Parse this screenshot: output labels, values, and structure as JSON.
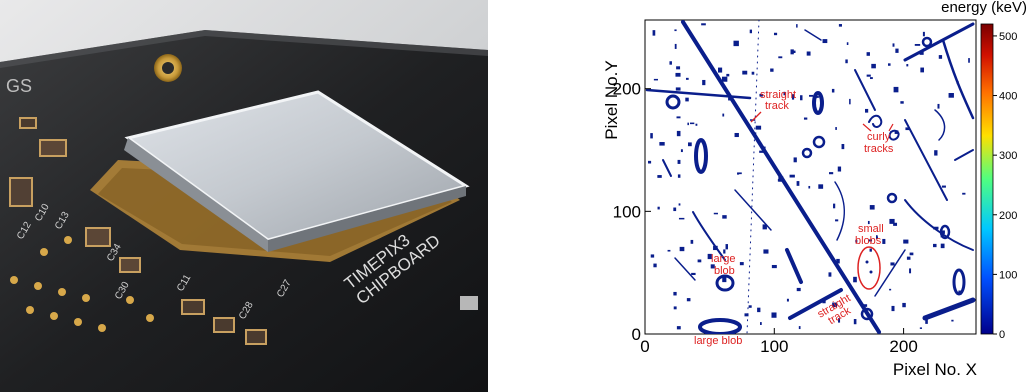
{
  "photo": {
    "chip_label_line1": "TIMEPIX3",
    "chip_label_line2": "CHIPBOARD",
    "silkscreen": [
      "C10",
      "C12",
      "C13",
      "C11",
      "C34",
      "C30",
      "C28",
      "C27",
      "GS"
    ]
  },
  "detector_map": {
    "axes": {
      "x_label": "Pixel No. X",
      "y_label": "Pixel No.Y",
      "x_ticks": [
        "0",
        "100",
        "200"
      ],
      "y_ticks": [
        "0",
        "100",
        "200"
      ],
      "xlim": [
        0,
        256
      ],
      "ylim": [
        0,
        256
      ]
    },
    "colorbar": {
      "title": "energy (keV)",
      "ticks": [
        "0",
        "100",
        "200",
        "300",
        "400",
        "500"
      ],
      "range": [
        0,
        520
      ],
      "colors": [
        "#00008b",
        "#0050ff",
        "#00c8ff",
        "#50ff80",
        "#ffe000",
        "#ff7000",
        "#d01000",
        "#7a0000"
      ]
    },
    "annotations": {
      "straight_track_top": [
        "straight",
        "track"
      ],
      "curly_tracks": [
        "curly",
        "tracks"
      ],
      "small_blobs": [
        "small",
        "blobs"
      ],
      "large_blob_mid": [
        "large",
        "blob"
      ],
      "large_blob_bottom": "large blob",
      "straight_track_bottom": [
        "straight",
        "track"
      ]
    },
    "annotation_color": "#d22222",
    "track_color": "#0a1e8c"
  }
}
